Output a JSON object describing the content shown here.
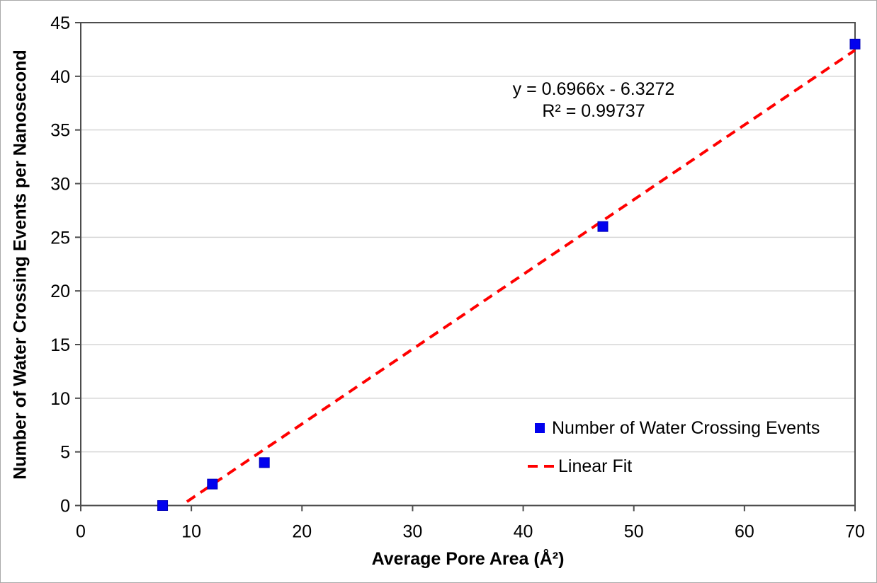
{
  "chart_data": {
    "type": "scatter",
    "title": "",
    "xlabel": "Average Pore Area (Å²)",
    "ylabel": "Number of Water Crossing Events per Nanosecond",
    "xlim": [
      0,
      70
    ],
    "ylim": [
      0,
      45
    ],
    "xticks": [
      0,
      10,
      20,
      30,
      40,
      50,
      60,
      70
    ],
    "yticks": [
      0,
      5,
      10,
      15,
      20,
      25,
      30,
      35,
      40,
      45
    ],
    "grid": "horizontal-only",
    "legend_position": "inside-lower-right",
    "annotations": [
      "y = 0.6966x - 6.3272",
      "R² = 0.99737"
    ],
    "colors": {
      "marker": "#0202ee",
      "fit_line": "#ff0000",
      "gridline": "#d6d6d6",
      "axis": "#4d4d4d",
      "text": "#000000"
    },
    "series": [
      {
        "name": "Number of Water Crossing Events",
        "type": "scatter",
        "marker": "square",
        "color": "#0202ee",
        "points": [
          [
            7.4,
            0
          ],
          [
            11.9,
            2
          ],
          [
            16.6,
            4
          ],
          [
            47.2,
            26
          ],
          [
            70,
            43
          ]
        ]
      },
      {
        "name": "Linear Fit",
        "type": "line",
        "style": "dashed",
        "color": "#ff0000",
        "slope": 0.6966,
        "intercept": -6.3272,
        "r_squared": 0.99737,
        "x_range": [
          9.6,
          70
        ]
      }
    ]
  }
}
